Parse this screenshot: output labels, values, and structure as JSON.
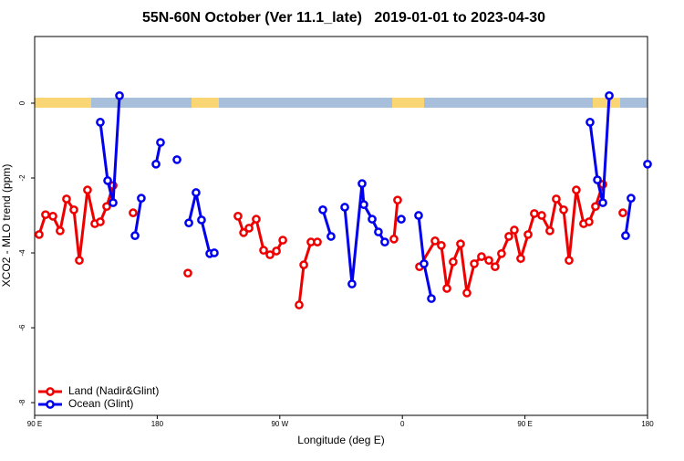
{
  "chart_data": {
    "type": "line",
    "title": "55N-60N October (Ver 11.1_late)   2019-01-01 to 2023-04-30",
    "x_label": "Longitude (deg E)",
    "y_label": "XCO2 - MLO trend (ppm)",
    "xlim": [
      90,
      540
    ],
    "ylim": [
      -8.34,
      1.78
    ],
    "xticks": [
      {
        "value": 90,
        "label": "90 E"
      },
      180,
      {
        "value": 270,
        "label": "90 W"
      },
      {
        "value": 360,
        "label": "0"
      },
      {
        "value": 450,
        "label": "90 E"
      },
      {
        "value": 540,
        "label": "180"
      }
    ],
    "yticks": [
      0,
      -2,
      -4,
      -6,
      -8
    ],
    "legend": "bottom-left",
    "series": [
      {
        "name": "Land (Nadir&Glint)",
        "color": "#ee0000",
        "x": [
          93.3,
          98.0,
          103.4,
          108.7,
          113.4,
          118.8,
          122.8,
          128.8,
          134.2,
          138.2,
          142.9,
          147.6,
          null,
          162.3,
          null,
          202.5,
          null,
          239.3,
          243.4,
          247.4,
          252.7,
          258.1,
          262.8,
          267.5,
          272.2,
          null,
          284.2,
          287.6,
          292.9,
          297.6,
          null,
          353.8,
          356.5,
          null,
          372.6,
          384.0,
          388.6,
          392.7,
          397.3,
          402.7,
          407.4,
          412.8,
          418.1,
          423.5,
          428.1,
          432.8,
          438.2,
          442.2,
          446.9,
          452.3,
          456.9,
          462.3,
          468.3,
          473.0,
          478.4,
          482.4,
          487.7,
          493.1,
          497.1,
          501.8,
          507.2,
          null,
          521.9
        ],
        "values": [
          -3.51,
          -2.98,
          -3.02,
          -3.41,
          -2.56,
          -2.85,
          -4.2,
          -2.32,
          -3.22,
          -3.17,
          -2.76,
          -2.2,
          null,
          -2.93,
          null,
          -4.54,
          null,
          -3.02,
          -3.46,
          -3.34,
          -3.1,
          -3.93,
          -4.05,
          -3.95,
          -3.66,
          null,
          -5.39,
          -4.32,
          -3.71,
          -3.71,
          null,
          -3.63,
          -2.59,
          null,
          -4.37,
          -3.68,
          -3.8,
          -4.95,
          -4.24,
          -3.76,
          -5.07,
          -4.29,
          -4.1,
          -4.2,
          -4.37,
          -4.02,
          -3.56,
          -3.39,
          -4.15,
          -3.51,
          -2.95,
          -3.0,
          -3.41,
          -2.56,
          -2.85,
          -4.2,
          -2.32,
          -3.22,
          -3.17,
          -2.76,
          -2.17,
          null,
          -2.93
        ]
      },
      {
        "name": "Ocean (Glint)",
        "color": "#0000ee",
        "x": [
          138.2,
          143.6,
          147.6,
          152.3,
          null,
          163.7,
          168.3,
          null,
          179.1,
          182.4,
          null,
          194.5,
          null,
          203.2,
          208.5,
          212.5,
          218.6,
          221.9,
          null,
          301.6,
          307.6,
          null,
          317.7,
          323.0,
          330.4,
          331.7,
          337.8,
          342.4,
          347.1,
          null,
          359.2,
          null,
          371.9,
          375.9,
          381.3,
          null,
          497.8,
          503.2,
          507.2,
          511.9,
          null,
          523.9,
          527.9,
          null,
          540.0
        ],
        "values": [
          -0.51,
          -2.07,
          -2.66,
          0.2,
          null,
          -3.54,
          -2.54,
          null,
          -1.63,
          -1.05,
          null,
          -1.51,
          null,
          -3.2,
          -2.39,
          -3.12,
          -4.02,
          -4.0,
          null,
          -2.85,
          -3.56,
          null,
          -2.78,
          -4.83,
          -2.15,
          -2.71,
          -3.1,
          -3.44,
          -3.71,
          null,
          -3.1,
          null,
          -3.0,
          -4.29,
          -5.22,
          null,
          -0.51,
          -2.05,
          -2.66,
          0.2,
          null,
          -3.54,
          -2.54,
          null,
          -1.63
        ]
      }
    ]
  }
}
